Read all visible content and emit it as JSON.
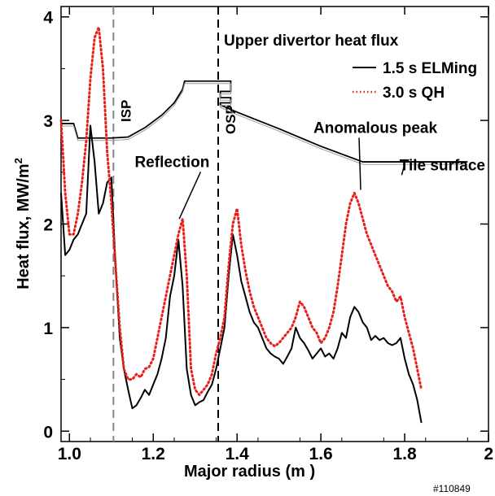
{
  "chart_data": {
    "type": "line",
    "title": "Upper divertor  heat flux",
    "xlabel": "Major radius (m )",
    "ylabel": "Heat flux, MW/m",
    "ylabel_sup": "2",
    "xlim": [
      0.98,
      2.0
    ],
    "ylim": [
      -0.1,
      4.1
    ],
    "xticks": [
      1.0,
      1.2,
      1.4,
      1.6,
      1.8,
      2.0
    ],
    "xtick_labels": [
      "1.0",
      "1.2",
      "1.4",
      "1.6",
      "1.8",
      "2"
    ],
    "yticks": [
      0,
      1,
      2,
      3,
      4
    ],
    "ytick_labels": [
      "0",
      "1",
      "2",
      "3",
      "4"
    ],
    "grid": false,
    "legend_position": "top-right",
    "series": [
      {
        "name": "1.5 s ELMing",
        "color": "#000000",
        "style": "solid",
        "x": [
          0.98,
          0.99,
          1.0,
          1.01,
          1.02,
          1.03,
          1.04,
          1.05,
          1.06,
          1.07,
          1.08,
          1.09,
          1.1,
          1.11,
          1.12,
          1.13,
          1.14,
          1.15,
          1.16,
          1.17,
          1.18,
          1.19,
          1.2,
          1.21,
          1.22,
          1.23,
          1.24,
          1.25,
          1.26,
          1.27,
          1.28,
          1.29,
          1.3,
          1.31,
          1.32,
          1.33,
          1.34,
          1.35,
          1.36,
          1.37,
          1.38,
          1.39,
          1.4,
          1.41,
          1.42,
          1.43,
          1.44,
          1.45,
          1.46,
          1.47,
          1.48,
          1.49,
          1.5,
          1.51,
          1.52,
          1.53,
          1.54,
          1.55,
          1.56,
          1.57,
          1.58,
          1.59,
          1.6,
          1.61,
          1.62,
          1.63,
          1.64,
          1.65,
          1.66,
          1.67,
          1.68,
          1.69,
          1.7,
          1.71,
          1.72,
          1.73,
          1.74,
          1.75,
          1.76,
          1.77,
          1.78,
          1.79,
          1.8,
          1.81,
          1.82,
          1.83,
          1.84
        ],
        "y": [
          2.3,
          1.7,
          1.75,
          1.85,
          1.9,
          2.0,
          2.1,
          2.95,
          2.6,
          2.1,
          2.2,
          2.4,
          2.45,
          1.6,
          0.9,
          0.6,
          0.4,
          0.22,
          0.25,
          0.32,
          0.4,
          0.35,
          0.45,
          0.55,
          0.7,
          0.9,
          1.3,
          1.5,
          1.85,
          1.4,
          0.6,
          0.35,
          0.25,
          0.28,
          0.3,
          0.38,
          0.45,
          0.6,
          0.8,
          1.0,
          1.5,
          1.9,
          1.7,
          1.45,
          1.3,
          1.15,
          1.05,
          1.0,
          0.9,
          0.8,
          0.75,
          0.72,
          0.7,
          0.65,
          0.72,
          0.8,
          1.0,
          0.9,
          0.85,
          0.78,
          0.7,
          0.75,
          0.8,
          0.72,
          0.75,
          0.7,
          0.8,
          0.95,
          0.9,
          1.1,
          1.2,
          1.15,
          1.05,
          1.0,
          0.88,
          0.92,
          0.88,
          0.9,
          0.85,
          0.83,
          0.85,
          0.9,
          0.7,
          0.55,
          0.45,
          0.3,
          0.08
        ]
      },
      {
        "name": "3.0 s QH",
        "color": "#e8201a",
        "style": "dotted",
        "x": [
          0.98,
          0.99,
          1.0,
          1.01,
          1.02,
          1.03,
          1.04,
          1.05,
          1.06,
          1.07,
          1.08,
          1.09,
          1.1,
          1.11,
          1.12,
          1.13,
          1.14,
          1.15,
          1.16,
          1.17,
          1.18,
          1.19,
          1.2,
          1.21,
          1.22,
          1.23,
          1.24,
          1.25,
          1.26,
          1.27,
          1.28,
          1.29,
          1.3,
          1.31,
          1.32,
          1.33,
          1.34,
          1.35,
          1.36,
          1.37,
          1.38,
          1.39,
          1.4,
          1.41,
          1.42,
          1.43,
          1.44,
          1.45,
          1.46,
          1.47,
          1.48,
          1.49,
          1.5,
          1.51,
          1.52,
          1.53,
          1.54,
          1.55,
          1.56,
          1.57,
          1.58,
          1.59,
          1.6,
          1.61,
          1.62,
          1.63,
          1.64,
          1.65,
          1.66,
          1.67,
          1.68,
          1.69,
          1.7,
          1.71,
          1.72,
          1.73,
          1.74,
          1.75,
          1.76,
          1.77,
          1.78,
          1.79,
          1.8,
          1.81,
          1.82,
          1.83,
          1.84
        ],
        "y": [
          3.0,
          2.3,
          1.9,
          1.9,
          2.1,
          2.4,
          2.8,
          3.4,
          3.8,
          3.9,
          3.5,
          2.7,
          2.2,
          1.6,
          1.0,
          0.6,
          0.5,
          0.5,
          0.55,
          0.52,
          0.6,
          0.62,
          0.7,
          0.9,
          1.1,
          1.3,
          1.5,
          1.7,
          1.9,
          2.05,
          1.5,
          0.6,
          0.4,
          0.35,
          0.4,
          0.45,
          0.55,
          0.75,
          0.9,
          1.1,
          1.6,
          2.0,
          2.15,
          1.8,
          1.55,
          1.35,
          1.2,
          1.1,
          1.0,
          0.9,
          0.85,
          0.82,
          0.85,
          0.9,
          0.95,
          1.0,
          1.1,
          1.25,
          1.2,
          1.1,
          1.0,
          0.95,
          0.85,
          0.9,
          1.0,
          1.15,
          1.4,
          1.7,
          2.0,
          2.2,
          2.3,
          2.2,
          2.05,
          1.9,
          1.8,
          1.7,
          1.6,
          1.5,
          1.4,
          1.35,
          1.25,
          1.3,
          1.1,
          0.95,
          0.8,
          0.6,
          0.4
        ]
      }
    ],
    "vlines": [
      {
        "x": 1.105,
        "label": "ISP",
        "color": "#888888"
      },
      {
        "x": 1.355,
        "label": "OSP",
        "color": "#000000"
      }
    ],
    "tile_surface_profile": {
      "x": [
        0.98,
        1.0,
        1.01,
        1.015,
        1.02,
        1.05,
        1.1,
        1.14,
        1.18,
        1.22,
        1.25,
        1.27,
        1.275,
        1.36,
        1.385,
        1.385,
        1.36,
        1.36,
        1.385,
        1.385,
        1.36,
        1.36,
        1.4,
        1.5,
        1.6,
        1.7,
        1.75,
        1.95
      ],
      "y": [
        2.97,
        2.97,
        2.97,
        2.9,
        2.83,
        2.83,
        2.83,
        2.84,
        2.93,
        3.05,
        3.17,
        3.3,
        3.38,
        3.38,
        3.38,
        3.28,
        3.28,
        3.22,
        3.22,
        3.17,
        3.17,
        3.15,
        3.08,
        2.92,
        2.75,
        2.6,
        2.6,
        2.6
      ],
      "color": "#000000"
    },
    "annotations": [
      {
        "text": "Reflection",
        "x": 1.245,
        "y": 2.55,
        "arrow_to": [
          1.262,
          2.05
        ]
      },
      {
        "text": "Anomalous peak",
        "x": 1.73,
        "y": 2.88,
        "arrow_to": [
          1.695,
          2.33
        ]
      },
      {
        "text": "Tile surface",
        "x": 1.89,
        "y": 2.52,
        "arrow_to": [
          1.8,
          2.58
        ]
      }
    ],
    "shot_label": "#110849"
  }
}
